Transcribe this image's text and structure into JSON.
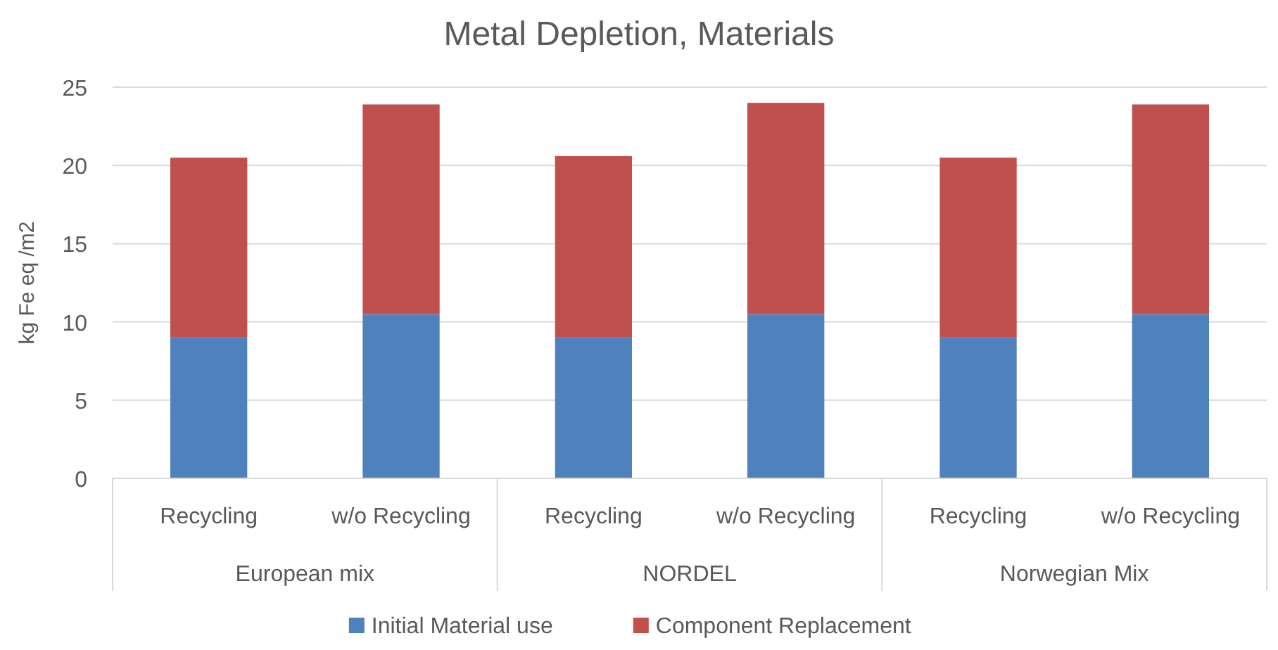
{
  "chart_data": {
    "type": "bar",
    "title": "Metal Depletion, Materials",
    "ylabel": "kg Fe eq /m2",
    "categories": [
      "Recycling",
      "w/o Recycling",
      "Recycling",
      "w/o Recycling",
      "Recycling",
      "w/o Recycling"
    ],
    "annotations": [
      "European mix",
      "NORDEL",
      "Norwegian Mix"
    ],
    "series": [
      {
        "name": "Initial Material use",
        "color": "#4f81bd",
        "values": [
          9,
          10.5,
          9,
          10.5,
          9,
          10.5
        ]
      },
      {
        "name": "Component Replacement",
        "color": "#c0504d",
        "values": [
          11.5,
          13.4,
          11.6,
          13.5,
          11.5,
          13.4
        ]
      }
    ],
    "stacked": true,
    "ylim": [
      0,
      25
    ],
    "yticks": [
      0,
      5,
      10,
      15,
      20,
      25
    ],
    "grid": "y",
    "legend": "bottom"
  }
}
